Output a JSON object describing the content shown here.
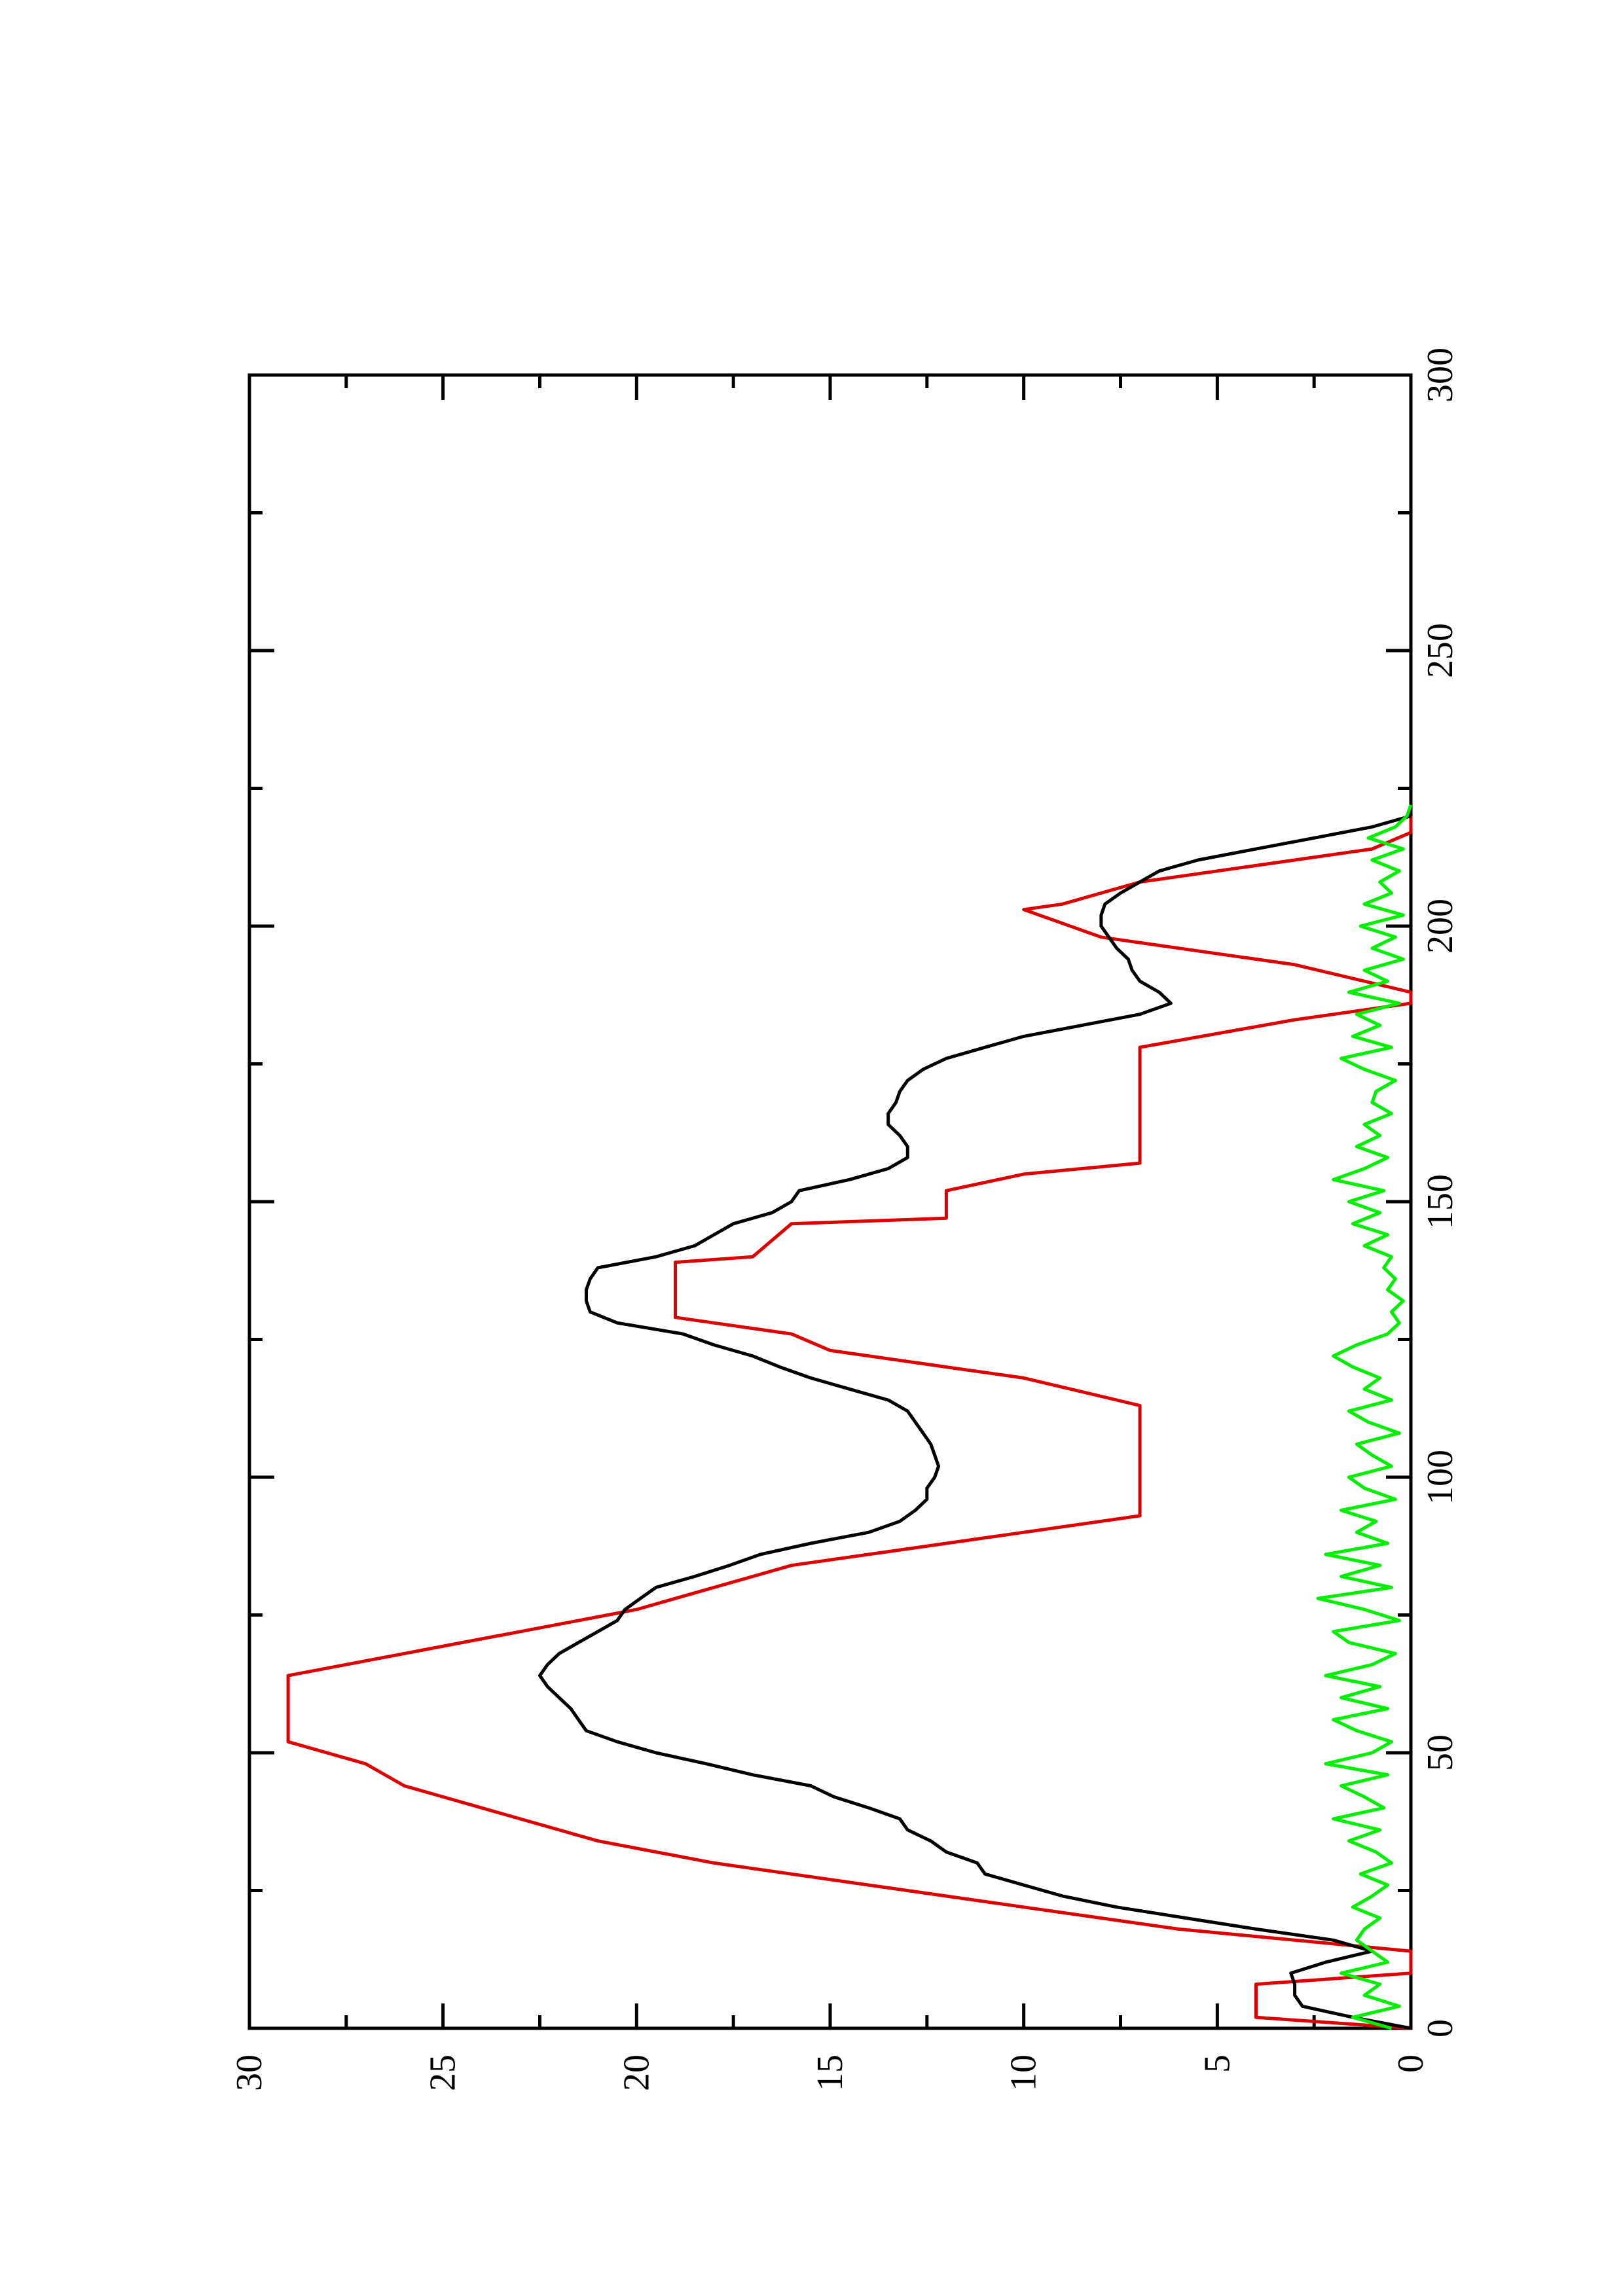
{
  "chart_data": {
    "type": "line",
    "title": "",
    "xlabel": "",
    "ylabel": "",
    "xlim": [
      0,
      300
    ],
    "ylim": [
      0,
      30
    ],
    "orientation": "rotated 90° counter-clockwise (page is landscape plot printed in portrait)",
    "grid": false,
    "legend": "none",
    "x_ticks": [
      {
        "value": 0,
        "label": "0"
      },
      {
        "value": 50,
        "label": "50"
      },
      {
        "value": 100,
        "label": "100"
      },
      {
        "value": 150,
        "label": "150"
      },
      {
        "value": 200,
        "label": "200"
      },
      {
        "value": 250,
        "label": "250"
      },
      {
        "value": 300,
        "label": "300"
      }
    ],
    "x_minor_ticks": [
      25,
      75,
      125,
      175,
      225,
      275
    ],
    "y_ticks": [
      {
        "value": 0,
        "label": "0"
      },
      {
        "value": 5,
        "label": "5"
      },
      {
        "value": 10,
        "label": "10"
      },
      {
        "value": 15,
        "label": "15"
      },
      {
        "value": 20,
        "label": "20"
      },
      {
        "value": 25,
        "label": "25"
      },
      {
        "value": 30,
        "label": "30"
      }
    ],
    "y_minor_ticks": [
      2.5,
      7.5,
      12.5,
      17.5,
      22.5,
      27.5
    ],
    "series": [
      {
        "color": "#dd0000",
        "x": [
          0,
          2,
          8,
          10,
          14,
          16,
          18,
          22,
          26,
          30,
          34,
          36,
          42,
          44,
          48,
          52,
          64,
          68,
          72,
          76,
          78,
          82,
          84,
          86,
          90,
          93,
          113,
          118,
          120,
          123,
          126,
          129,
          139,
          140,
          146,
          147,
          152,
          155,
          157,
          178,
          183,
          186,
          188,
          193,
          196,
          198,
          203,
          204,
          208,
          210,
          212,
          214,
          217,
          220
        ],
        "y": [
          0,
          4,
          4,
          0,
          0,
          3,
          6,
          10,
          14,
          18,
          21,
          22,
          25,
          26,
          27,
          29,
          29,
          26,
          23,
          20,
          19,
          17,
          16,
          14,
          10,
          7,
          7,
          10,
          12,
          15,
          16,
          19,
          19,
          17,
          16,
          12,
          12,
          10,
          7,
          7,
          3,
          0,
          0,
          3,
          6,
          8,
          10,
          9,
          7,
          5,
          3,
          1,
          0,
          0
        ]
      },
      {
        "color": "#000000",
        "x": [
          0,
          2,
          4,
          6,
          8,
          10,
          12,
          14,
          16,
          18,
          20,
          22,
          24,
          26,
          28,
          30,
          32,
          34,
          36,
          38,
          40,
          42,
          44,
          46,
          48,
          50,
          52,
          54,
          56,
          58,
          60,
          62,
          64,
          66,
          68,
          70,
          72,
          74,
          76,
          78,
          80,
          82,
          84,
          86,
          88,
          90,
          92,
          94,
          96,
          98,
          100,
          102,
          104,
          106,
          108,
          110,
          112,
          114,
          116,
          118,
          120,
          122,
          124,
          126,
          128,
          130,
          132,
          134,
          136,
          138,
          140,
          142,
          144,
          146,
          148,
          150,
          152,
          154,
          156,
          158,
          160,
          162,
          164,
          166,
          168,
          170,
          172,
          174,
          176,
          178,
          180,
          182,
          184,
          186,
          188,
          190,
          192,
          194,
          196,
          198,
          200,
          202,
          204,
          206,
          208,
          210,
          212,
          214,
          216,
          218,
          220
        ],
        "y": [
          0,
          1.5,
          2.8,
          3.0,
          3.0,
          3.1,
          2.2,
          1.0,
          2.0,
          4.0,
          5.8,
          7.6,
          9.0,
          10.0,
          11.0,
          11.2,
          12.0,
          12.4,
          13.0,
          13.2,
          14.0,
          14.9,
          15.5,
          17.0,
          18.2,
          19.5,
          20.5,
          21.3,
          21.5,
          21.7,
          22.0,
          22.3,
          22.5,
          22.3,
          22.0,
          21.5,
          21.0,
          20.5,
          20.3,
          19.9,
          19.5,
          18.5,
          17.6,
          16.8,
          15.5,
          14.0,
          13.2,
          12.8,
          12.5,
          12.5,
          12.3,
          12.2,
          12.3,
          12.4,
          12.6,
          12.8,
          13.0,
          13.5,
          14.5,
          15.5,
          16.3,
          17.0,
          18.0,
          18.8,
          20.5,
          21.2,
          21.3,
          21.3,
          21.2,
          21.0,
          19.5,
          18.5,
          18.0,
          17.5,
          16.5,
          16.0,
          15.8,
          14.5,
          13.5,
          13.0,
          13.0,
          13.2,
          13.5,
          13.5,
          13.3,
          13.2,
          13.0,
          12.6,
          12.0,
          11.0,
          10.0,
          8.5,
          7.0,
          6.2,
          6.5,
          7.0,
          7.2,
          7.3,
          7.6,
          7.8,
          8.0,
          8.0,
          7.9,
          7.5,
          7.0,
          6.5,
          5.5,
          4.0,
          2.5,
          1.0,
          0
        ]
      },
      {
        "color": "#00ee00",
        "x": [
          0,
          2,
          4,
          6,
          8,
          10,
          12,
          14,
          16,
          18,
          20,
          22,
          24,
          26,
          28,
          30,
          32,
          34,
          36,
          38,
          40,
          42,
          44,
          46,
          48,
          50,
          52,
          54,
          56,
          58,
          60,
          62,
          64,
          66,
          68,
          70,
          72,
          74,
          76,
          78,
          80,
          82,
          84,
          86,
          88,
          90,
          92,
          94,
          96,
          98,
          100,
          102,
          104,
          106,
          108,
          110,
          112,
          114,
          116,
          118,
          120,
          122,
          124,
          126,
          128,
          130,
          132,
          134,
          136,
          138,
          140,
          142,
          144,
          146,
          148,
          150,
          152,
          154,
          156,
          158,
          160,
          162,
          164,
          166,
          168,
          170,
          172,
          174,
          176,
          178,
          180,
          182,
          184,
          186,
          188,
          190,
          192,
          194,
          196,
          198,
          200,
          202,
          204,
          206,
          208,
          210,
          212,
          214,
          216,
          218,
          220,
          222
        ],
        "y": [
          0.5,
          1.5,
          0.3,
          1.2,
          0.8,
          1.8,
          0.6,
          1.0,
          1.4,
          1.2,
          0.8,
          1.5,
          1.0,
          0.6,
          1.3,
          0.5,
          0.9,
          1.6,
          0.8,
          2.0,
          0.7,
          1.2,
          1.8,
          0.6,
          2.2,
          1.0,
          0.5,
          1.4,
          2.0,
          0.6,
          1.8,
          0.8,
          2.2,
          1.0,
          0.4,
          1.6,
          2.0,
          0.3,
          1.2,
          2.4,
          0.5,
          1.8,
          0.8,
          2.2,
          0.6,
          1.4,
          0.9,
          1.8,
          0.4,
          1.2,
          1.6,
          0.5,
          1.0,
          1.4,
          0.3,
          1.1,
          1.6,
          0.5,
          1.2,
          0.8,
          1.5,
          2.0,
          1.4,
          0.6,
          0.3,
          0.5,
          0.2,
          0.6,
          0.4,
          0.7,
          0.5,
          1.2,
          0.6,
          1.5,
          0.8,
          1.6,
          0.7,
          2.0,
          1.2,
          0.6,
          1.4,
          0.8,
          1.2,
          0.5,
          1.0,
          0.9,
          0.4,
          1.2,
          1.8,
          0.5,
          1.5,
          0.8,
          1.4,
          0.3,
          1.6,
          0.6,
          1.2,
          0.2,
          1.0,
          0.4,
          1.3,
          0.2,
          1.2,
          0.5,
          0.8,
          0.3,
          1.0,
          0.2,
          1.1,
          0.4,
          0.1,
          0
        ]
      }
    ]
  }
}
